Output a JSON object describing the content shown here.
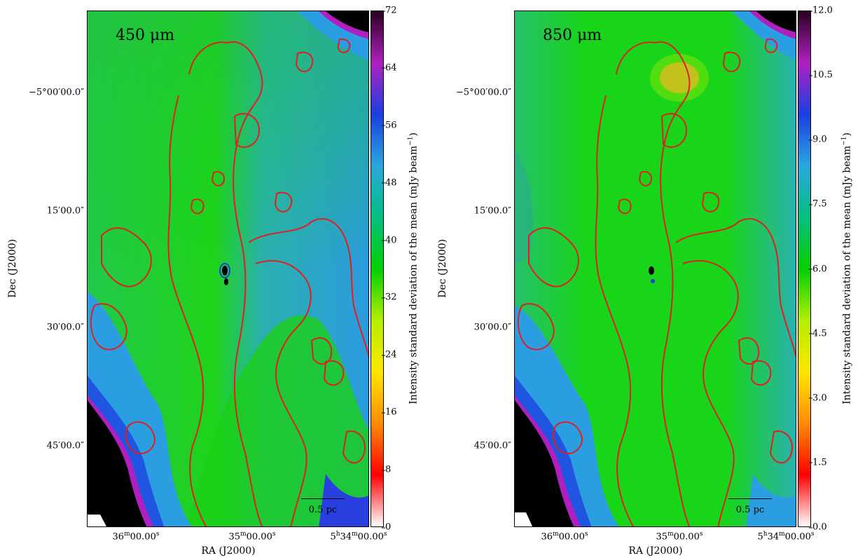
{
  "colors": {
    "contour": "#e02020",
    "colormap": [
      "#ffffff",
      "#ff0000",
      "#ff8c00",
      "#ffe600",
      "#b4ee00",
      "#00d000",
      "#00c080",
      "#29a8e0",
      "#1a3fe0",
      "#b020c0",
      "#2a0020"
    ]
  },
  "panels": [
    {
      "id": "left",
      "band_label": "450 μm",
      "scalebar_label": "0.5 pc",
      "colorbar_label": "Intensity standard deviation of the mean (mJy beam−1)",
      "colorbar_ticks": [
        "0",
        "8",
        "16",
        "24",
        "32",
        "40",
        "48",
        "56",
        "64",
        "72"
      ],
      "colorbar_range": [
        0,
        72
      ],
      "y_axis_label": "Dec (J2000)",
      "y_ticks": [
        "−5°00′00.0″",
        "15′00.0″",
        "30′00.0″",
        "45′00.0″"
      ],
      "x_axis_label": "RA (J2000)",
      "x_ticks": [
        "36m00.00s",
        "35m00.00s",
        "5h34m00.00s"
      ]
    },
    {
      "id": "right",
      "band_label": "850 μm",
      "scalebar_label": "0.5 pc",
      "colorbar_label": "Intensity standard deviation of the mean (mJy beam−1)",
      "colorbar_ticks": [
        "0.0",
        "1.5",
        "3.0",
        "4.5",
        "6.0",
        "7.5",
        "9.0",
        "10.5",
        "12.0"
      ],
      "colorbar_range": [
        0,
        12
      ],
      "y_axis_label": "Dec (J2000)",
      "y_ticks": [
        "−5°00′00.0″",
        "15′00.0″",
        "30′00.0″",
        "45′00.0″"
      ],
      "x_axis_label": "RA (J2000)",
      "x_ticks": [
        "36m00.00s",
        "35m00.00s",
        "5h34m00.00s"
      ]
    }
  ]
}
